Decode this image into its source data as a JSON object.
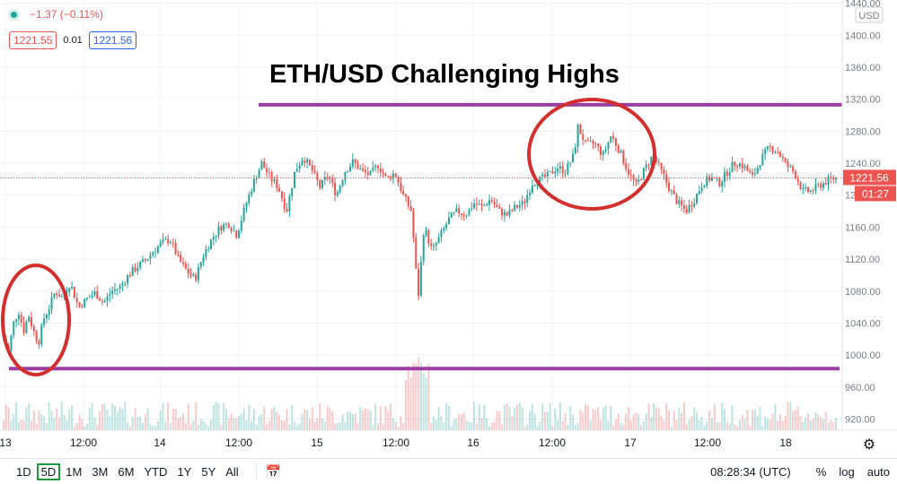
{
  "header": {
    "change_text": "−1.37 (−0.11%)",
    "bid": "1221.55",
    "spread": "0.01",
    "ask": "1221.56",
    "currency": "USD"
  },
  "colors": {
    "up": "#26a69a",
    "down": "#ef5350",
    "level_line": "#9c3fa3",
    "circle": "#d32f2f",
    "price_label_bg": "#ef5350",
    "active_tf_border": "#1b9b3a"
  },
  "current_price": {
    "value": 1221.56,
    "label": "1221.56",
    "countdown": "01:27"
  },
  "annotation": {
    "title": "ETH/USD Challenging Highs",
    "resistance": 1313,
    "support": 983
  },
  "chart_data": {
    "type": "candlestick",
    "title": "ETH/USD Challenging Highs",
    "y_axis": {
      "ticks": [
        "1440.00",
        "1400.00",
        "1360.00",
        "1320.00",
        "1280.00",
        "1240.00",
        "1200.00",
        "1160.00",
        "1120.00",
        "1080.00",
        "1040.00",
        "1000.00",
        "960.00",
        "920.00"
      ],
      "range": [
        906,
        1444
      ]
    },
    "x_axis": {
      "ticks": [
        "13",
        "12:00",
        "14",
        "12:00",
        "15",
        "12:00",
        "16",
        "12:00",
        "17",
        "12:00",
        "18"
      ]
    },
    "price_path": [
      [
        0.0,
        1020
      ],
      [
        0.6,
        1005
      ],
      [
        1.2,
        1040
      ],
      [
        1.8,
        1055
      ],
      [
        2.4,
        1030
      ],
      [
        3.0,
        1050
      ],
      [
        3.6,
        1030
      ],
      [
        4.2,
        1015
      ],
      [
        4.8,
        1045
      ],
      [
        5.5,
        1060
      ],
      [
        6.2,
        1080
      ],
      [
        7.0,
        1072
      ],
      [
        8.0,
        1090
      ],
      [
        9.0,
        1060
      ],
      [
        10.0,
        1070
      ],
      [
        11.0,
        1078
      ],
      [
        12.0,
        1065
      ],
      [
        13.0,
        1080
      ],
      [
        14.0,
        1085
      ],
      [
        15.0,
        1100
      ],
      [
        16.0,
        1110
      ],
      [
        17.0,
        1118
      ],
      [
        18.0,
        1130
      ],
      [
        19.0,
        1140
      ],
      [
        20.0,
        1145
      ],
      [
        21.0,
        1120
      ],
      [
        22.0,
        1105
      ],
      [
        23.0,
        1095
      ],
      [
        24.0,
        1125
      ],
      [
        25.0,
        1145
      ],
      [
        26.0,
        1160
      ],
      [
        27.0,
        1165
      ],
      [
        28.0,
        1150
      ],
      [
        29.0,
        1185
      ],
      [
        30.0,
        1215
      ],
      [
        31.0,
        1240
      ],
      [
        32.0,
        1222
      ],
      [
        33.0,
        1210
      ],
      [
        34.0,
        1180
      ],
      [
        35.0,
        1230
      ],
      [
        36.0,
        1248
      ],
      [
        37.0,
        1232
      ],
      [
        38.0,
        1210
      ],
      [
        39.0,
        1225
      ],
      [
        40.0,
        1200
      ],
      [
        41.0,
        1230
      ],
      [
        42.0,
        1242
      ],
      [
        43.0,
        1230
      ],
      [
        44.0,
        1225
      ],
      [
        45.0,
        1238
      ],
      [
        46.0,
        1220
      ],
      [
        47.0,
        1228
      ],
      [
        48.0,
        1200
      ],
      [
        49.0,
        1180
      ],
      [
        49.8,
        1070
      ],
      [
        50.5,
        1160
      ],
      [
        51.5,
        1130
      ],
      [
        52.5,
        1150
      ],
      [
        53.5,
        1170
      ],
      [
        54.5,
        1180
      ],
      [
        55.5,
        1175
      ],
      [
        56.5,
        1190
      ],
      [
        57.5,
        1185
      ],
      [
        58.5,
        1195
      ],
      [
        59.5,
        1180
      ],
      [
        60.5,
        1175
      ],
      [
        61.5,
        1185
      ],
      [
        62.5,
        1190
      ],
      [
        63.5,
        1215
      ],
      [
        64.5,
        1220
      ],
      [
        65.5,
        1225
      ],
      [
        66.5,
        1235
      ],
      [
        67.5,
        1230
      ],
      [
        68.5,
        1250
      ],
      [
        69.0,
        1285
      ],
      [
        70.0,
        1262
      ],
      [
        71.0,
        1265
      ],
      [
        72.0,
        1250
      ],
      [
        73.0,
        1275
      ],
      [
        74.0,
        1255
      ],
      [
        75.0,
        1230
      ],
      [
        76.0,
        1212
      ],
      [
        77.0,
        1232
      ],
      [
        78.0,
        1250
      ],
      [
        79.0,
        1230
      ],
      [
        80.0,
        1208
      ],
      [
        81.0,
        1190
      ],
      [
        82.0,
        1180
      ],
      [
        83.0,
        1195
      ],
      [
        84.0,
        1215
      ],
      [
        85.0,
        1222
      ],
      [
        86.0,
        1215
      ],
      [
        87.0,
        1230
      ],
      [
        88.0,
        1242
      ],
      [
        89.0,
        1235
      ],
      [
        90.0,
        1222
      ],
      [
        91.0,
        1245
      ],
      [
        92.0,
        1260
      ],
      [
        93.0,
        1255
      ],
      [
        94.0,
        1238
      ],
      [
        95.0,
        1228
      ],
      [
        96.0,
        1205
      ],
      [
        97.0,
        1205
      ],
      [
        98.0,
        1212
      ],
      [
        99.0,
        1218
      ],
      [
        100.0,
        1221.56
      ]
    ]
  },
  "bottom_bar": {
    "timeframes": [
      "1D",
      "5D",
      "1M",
      "3M",
      "6M",
      "YTD",
      "1Y",
      "5Y",
      "All"
    ],
    "active": "5D",
    "time": "08:28:34 (UTC)",
    "percent": "%",
    "log": "log",
    "auto": "auto"
  }
}
